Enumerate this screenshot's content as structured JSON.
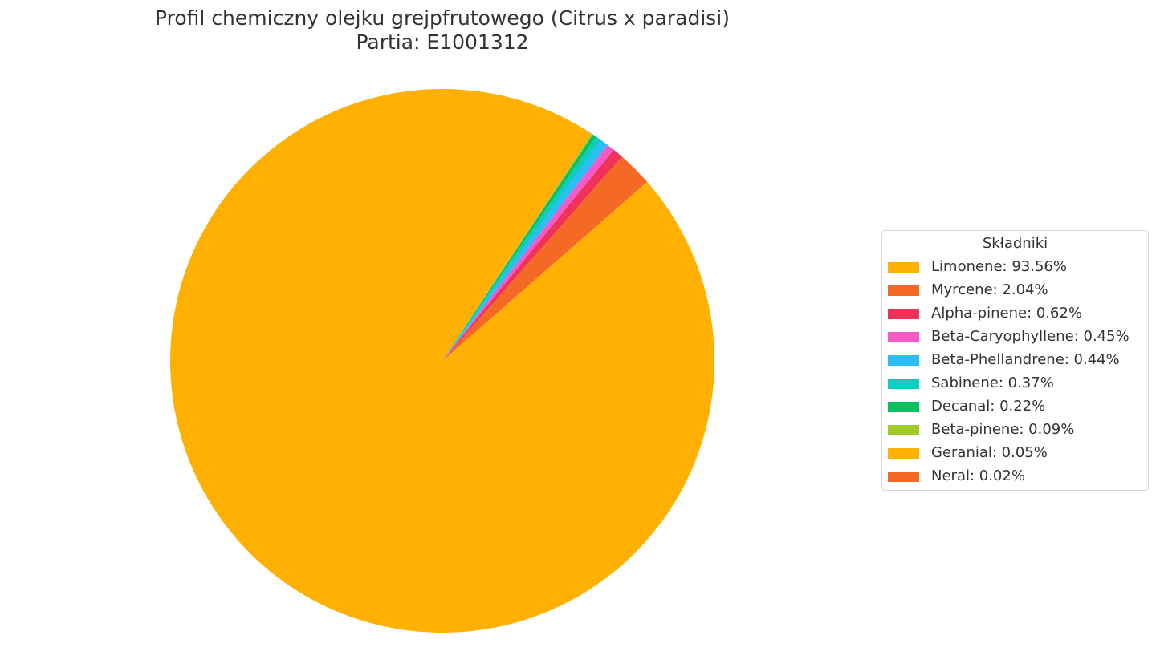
{
  "chart_data": {
    "type": "pie",
    "title_line1": "Profil chemiczny olejku grejpfrutowego (Citrus x paradisi)",
    "title_line2": "Partia: E1001312",
    "legend_title": "Składniki",
    "legend_position": "right",
    "slices": [
      {
        "name": "Limonene",
        "value": 93.56,
        "label": "Limonene: 93.56%",
        "color": "#FFB000"
      },
      {
        "name": "Myrcene",
        "value": 2.04,
        "label": "Myrcene: 2.04%",
        "color": "#F46A24"
      },
      {
        "name": "Alpha-pinene",
        "value": 0.62,
        "label": "Alpha-pinene: 0.62%",
        "color": "#F03258"
      },
      {
        "name": "Beta-Caryophyllene",
        "value": 0.45,
        "label": "Beta-Caryophyllene: 0.45%",
        "color": "#F759C7"
      },
      {
        "name": "Beta-Phellandrene",
        "value": 0.44,
        "label": "Beta-Phellandrene: 0.44%",
        "color": "#2BBDF7"
      },
      {
        "name": "Sabinene",
        "value": 0.37,
        "label": "Sabinene: 0.37%",
        "color": "#0FCCC0"
      },
      {
        "name": "Decanal",
        "value": 0.22,
        "label": "Decanal: 0.22%",
        "color": "#06C25E"
      },
      {
        "name": "Beta-pinene",
        "value": 0.09,
        "label": "Beta-pinene: 0.09%",
        "color": "#A1CC26"
      },
      {
        "name": "Geranial",
        "value": 0.05,
        "label": "Geranial: 0.05%",
        "color": "#FFB000"
      },
      {
        "name": "Neral",
        "value": 0.02,
        "label": "Neral: 0.02%",
        "color": "#F46A24"
      }
    ]
  }
}
